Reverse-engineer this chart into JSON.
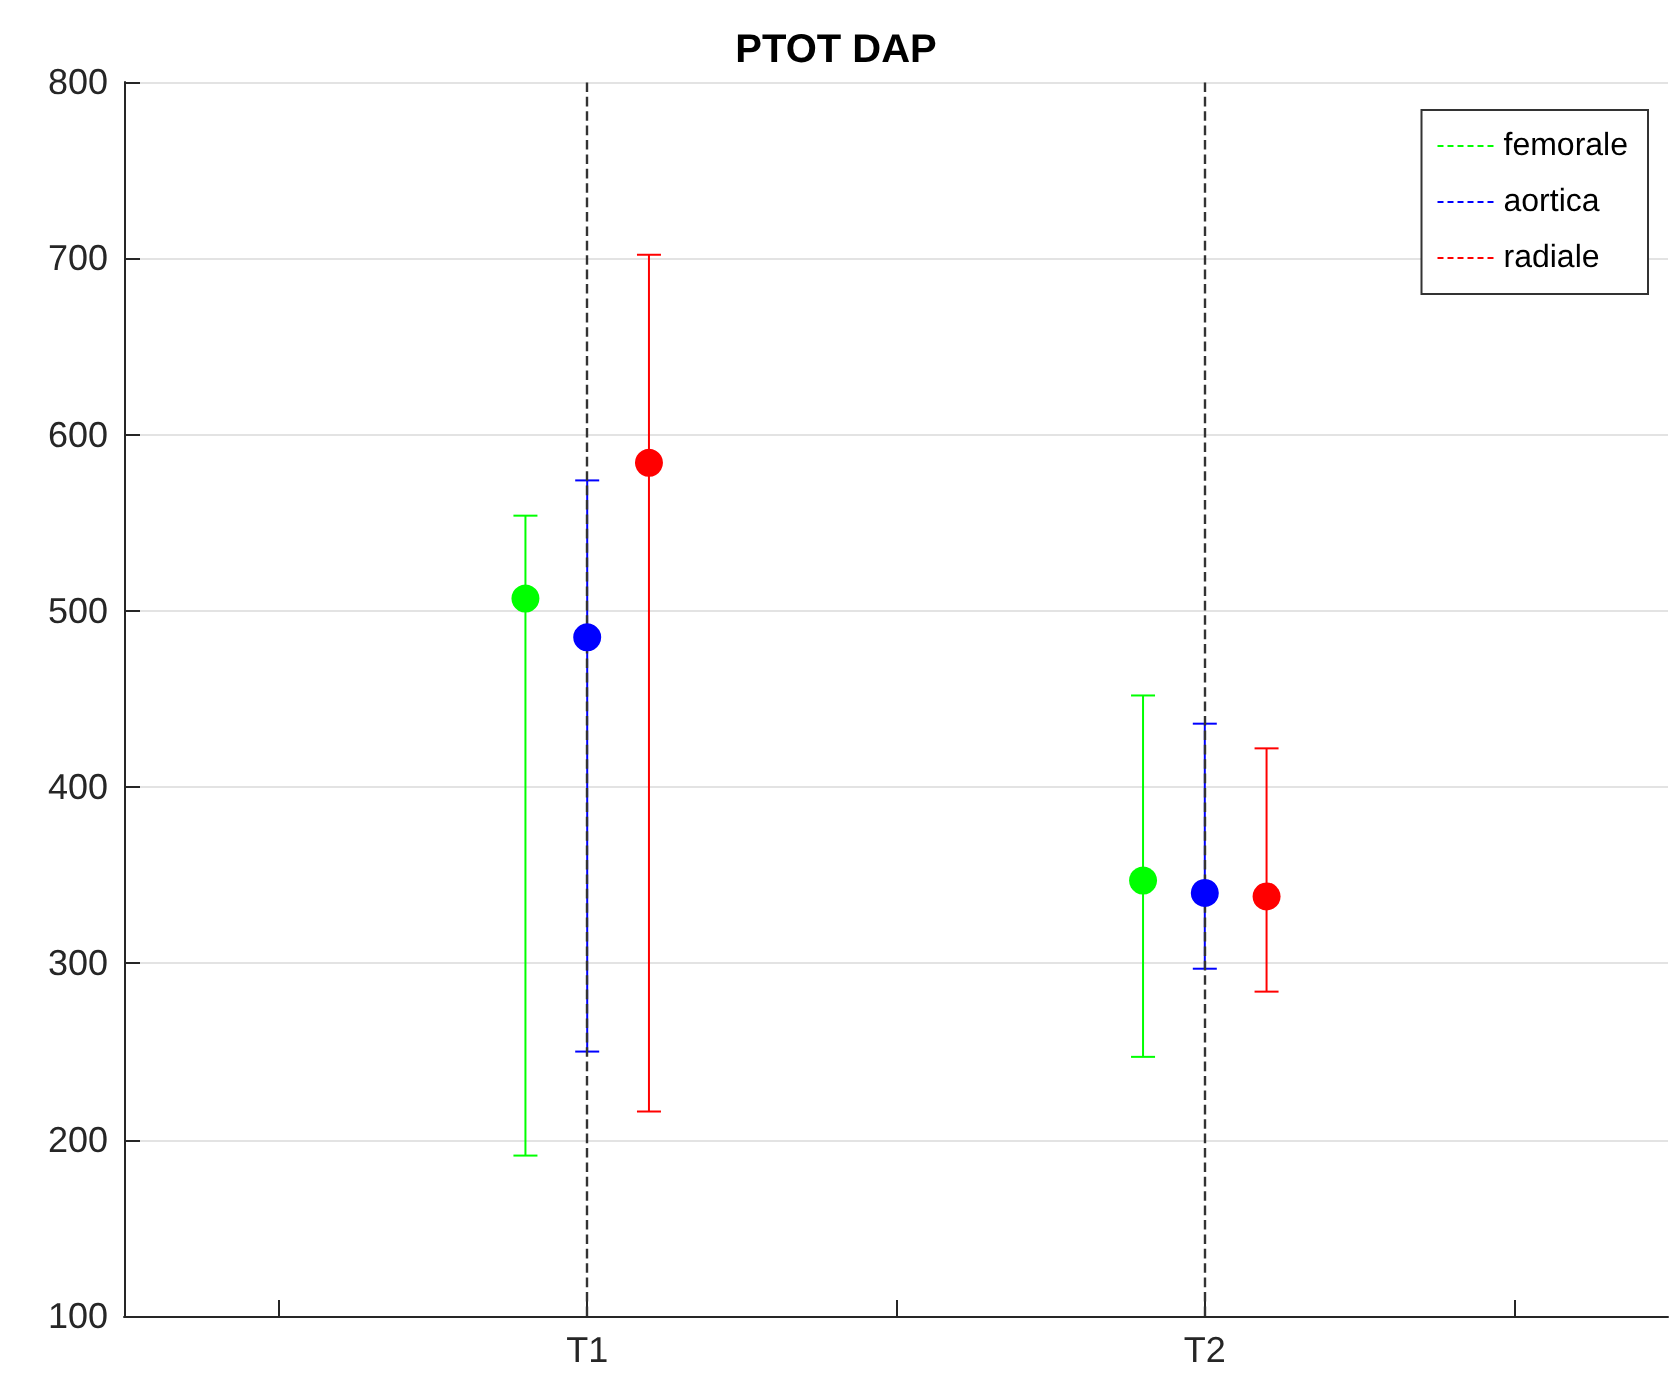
{
  "chart_data": {
    "type": "scatter",
    "title": "PTOT DAP",
    "categories": [
      null,
      "T1",
      null,
      "T2",
      null
    ],
    "ylim": [
      100,
      800
    ],
    "yticks": [
      100,
      200,
      300,
      400,
      500,
      600,
      700,
      800
    ],
    "series": [
      {
        "name": "femorale",
        "color": "#00ff00",
        "x": [
          "T1",
          "T2"
        ],
        "values": [
          507,
          347
        ],
        "errors": [
          [
            191,
            554
          ],
          [
            247,
            452
          ]
        ]
      },
      {
        "name": "aortica",
        "color": "#0000ff",
        "x": [
          "T1",
          "T2"
        ],
        "values": [
          485,
          340
        ],
        "errors": [
          [
            250,
            574
          ],
          [
            297,
            436
          ]
        ]
      },
      {
        "name": "radiale",
        "color": "#ff0000",
        "x": [
          "T1",
          "T2"
        ],
        "values": [
          584,
          338
        ],
        "errors": [
          [
            216,
            702
          ],
          [
            284,
            422
          ]
        ]
      }
    ],
    "ref_lines": [
      {
        "axis": "x",
        "value": "T1",
        "color": "#333333",
        "line_style": "dashed"
      },
      {
        "axis": "x",
        "value": "T2",
        "color": "#333333",
        "line_style": "dashed"
      }
    ],
    "marker": "circle",
    "grid": "y",
    "legend": "top right"
  }
}
